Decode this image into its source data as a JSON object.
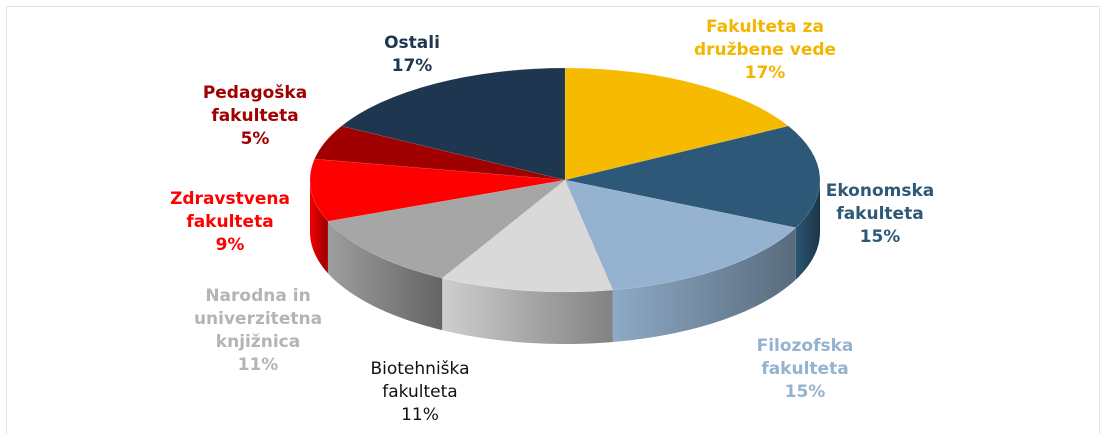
{
  "chart_data": {
    "type": "pie3d",
    "categories": [
      "Fakulteta za družbene vede",
      "Ekonomska fakulteta",
      "Filozofska fakulteta",
      "Biotehniška fakulteta",
      "Narodna in univerzitetna knjižnica",
      "Zdravstvena fakulteta",
      "Pedagoška fakulteta",
      "Ostali"
    ],
    "values": [
      17,
      15,
      15,
      11,
      11,
      9,
      5,
      17
    ],
    "value_labels": [
      "17%",
      "15%",
      "15%",
      "11%",
      "11%",
      "9%",
      "5%",
      "17%"
    ],
    "colors": [
      "#f6bb00",
      "#2e5878",
      "#95b3d0",
      "#d9d9d9",
      "#a6a6a6",
      "#ff0000",
      "#a00000",
      "#1f3650"
    ],
    "label_colors": [
      "#f2b600",
      "#2e5878",
      "#95b3d0",
      "#111111",
      "#b4b4b4",
      "#ff0000",
      "#a00000",
      "#1f3650"
    ]
  }
}
